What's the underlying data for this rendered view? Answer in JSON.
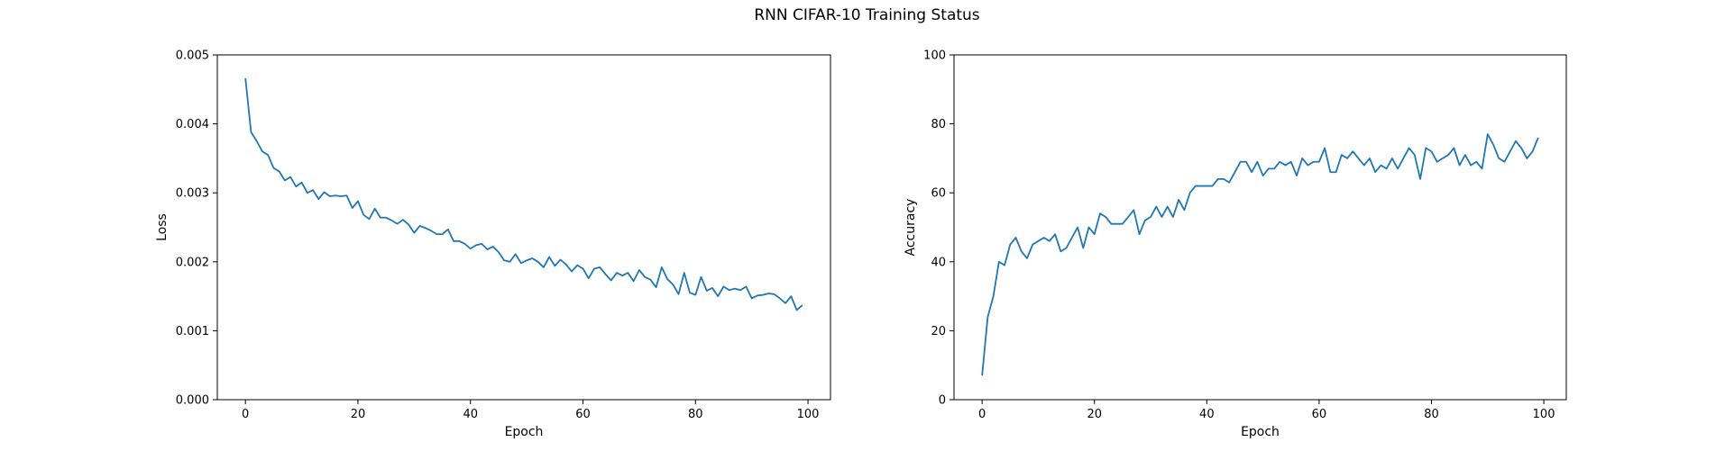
{
  "figure": {
    "title": "RNN CIFAR-10 Training Status"
  },
  "chart_data": [
    {
      "type": "line",
      "xlabel": "Epoch",
      "ylabel": "Loss",
      "xlim": [
        -5,
        104
      ],
      "ylim": [
        0,
        0.005
      ],
      "xticks": [
        0,
        20,
        40,
        60,
        80,
        100
      ],
      "xtick_labels": [
        "0",
        "20",
        "40",
        "60",
        "80",
        "100"
      ],
      "yticks": [
        0,
        0.001,
        0.002,
        0.003,
        0.004,
        0.005
      ],
      "ytick_labels": [
        "0.000",
        "0.001",
        "0.002",
        "0.003",
        "0.004",
        "0.005"
      ],
      "grid": false,
      "color": "#1f77b4",
      "x_start": 0,
      "values": [
        0.00466,
        0.00388,
        0.00375,
        0.0036,
        0.00355,
        0.00336,
        0.00331,
        0.00318,
        0.00323,
        0.00309,
        0.00315,
        0.003,
        0.00304,
        0.00291,
        0.00301,
        0.00295,
        0.00296,
        0.00295,
        0.00296,
        0.00278,
        0.00288,
        0.00268,
        0.00262,
        0.00277,
        0.00264,
        0.00264,
        0.0026,
        0.00255,
        0.00261,
        0.00254,
        0.00242,
        0.00252,
        0.00249,
        0.00245,
        0.0024,
        0.0024,
        0.00247,
        0.0023,
        0.0023,
        0.00226,
        0.00219,
        0.00224,
        0.00226,
        0.00218,
        0.00222,
        0.00214,
        0.00202,
        0.002,
        0.00211,
        0.00198,
        0.00202,
        0.00205,
        0.002,
        0.00192,
        0.00207,
        0.00194,
        0.00203,
        0.00196,
        0.00186,
        0.00195,
        0.0019,
        0.00176,
        0.0019,
        0.00192,
        0.00182,
        0.00173,
        0.00184,
        0.0018,
        0.00184,
        0.00172,
        0.00188,
        0.00178,
        0.00174,
        0.00163,
        0.00192,
        0.00175,
        0.00167,
        0.00153,
        0.00184,
        0.00155,
        0.00152,
        0.00178,
        0.00158,
        0.00162,
        0.0015,
        0.00164,
        0.00159,
        0.00161,
        0.00159,
        0.00164,
        0.00147,
        0.00151,
        0.00152,
        0.00154,
        0.00153,
        0.00147,
        0.0014,
        0.0015,
        0.0013,
        0.00137
      ]
    },
    {
      "type": "line",
      "xlabel": "Epoch",
      "ylabel": "Accuracy",
      "xlim": [
        -5,
        104
      ],
      "ylim": [
        0,
        100
      ],
      "xticks": [
        0,
        20,
        40,
        60,
        80,
        100
      ],
      "xtick_labels": [
        "0",
        "20",
        "40",
        "60",
        "80",
        "100"
      ],
      "yticks": [
        0,
        20,
        40,
        60,
        80,
        100
      ],
      "ytick_labels": [
        "0",
        "20",
        "40",
        "60",
        "80",
        "100"
      ],
      "grid": false,
      "color": "#1f77b4",
      "x_start": 0,
      "values": [
        7,
        24,
        30,
        40,
        39,
        45,
        47,
        43,
        41,
        45,
        46,
        47,
        46,
        48,
        43,
        44,
        47,
        50,
        44,
        50,
        48,
        54,
        53,
        51,
        51,
        51,
        53,
        55,
        48,
        52,
        53,
        56,
        53,
        56,
        53,
        58,
        55,
        60,
        62,
        62,
        62,
        62,
        64,
        64,
        63,
        66,
        69,
        69,
        66,
        69,
        65,
        67,
        67,
        69,
        68,
        69,
        65,
        70,
        68,
        69,
        69,
        73,
        66,
        66,
        71,
        70,
        72,
        70,
        68,
        70,
        66,
        68,
        67,
        70,
        67,
        70,
        73,
        71,
        64,
        73,
        72,
        69,
        70,
        71,
        73,
        68,
        71,
        68,
        69,
        67,
        77,
        74,
        70,
        69,
        72,
        75,
        73,
        70,
        72,
        76
      ]
    }
  ]
}
